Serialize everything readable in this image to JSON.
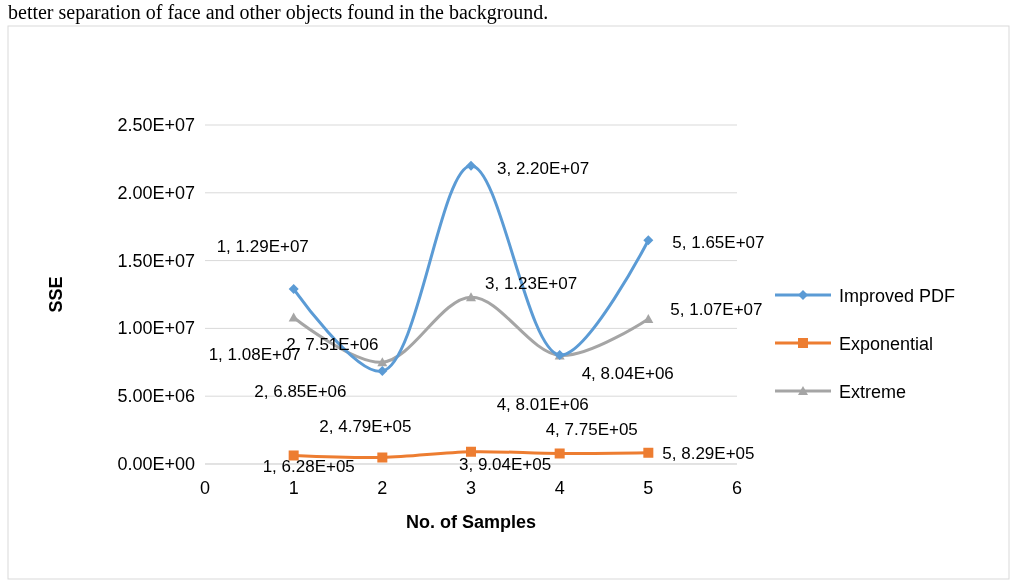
{
  "chart_data": {
    "type": "line",
    "xlabel": "No. of Samples",
    "ylabel": "SSE",
    "annotations": [
      "better separation of face and other objects found in the background.",
      {
        "text": "1, 1.29E+07",
        "x": 1,
        "y": 12900000
      },
      {
        "text": "2, 6.85E+06",
        "x": 2,
        "y": 6850000
      },
      {
        "text": "3, 2.20E+07",
        "x": 3,
        "y": 22000000
      },
      {
        "text": "4, 8.04E+06",
        "x": 4,
        "y": 8040000
      },
      {
        "text": "5, 1.65E+07",
        "x": 5,
        "y": 16500000
      },
      {
        "text": "1, 6.28E+05",
        "x": 1,
        "y": 628000
      },
      {
        "text": "2, 4.79E+05",
        "x": 2,
        "y": 479000
      },
      {
        "text": "3, 9.04E+05",
        "x": 3,
        "y": 904000
      },
      {
        "text": "4, 7.75E+05",
        "x": 4,
        "y": 775000
      },
      {
        "text": "5, 8.29E+05",
        "x": 5,
        "y": 829000
      },
      {
        "text": "1, 1.08E+07",
        "x": 1,
        "y": 10800000
      },
      {
        "text": "2, 7.51E+06",
        "x": 2,
        "y": 7510000
      },
      {
        "text": "3, 1.23E+07",
        "x": 3,
        "y": 12300000
      },
      {
        "text": "4, 8.01E+06",
        "x": 4,
        "y": 8010000
      },
      {
        "text": "5, 1.07E+07",
        "x": 5,
        "y": 10700000
      }
    ],
    "x": [
      1,
      2,
      3,
      4,
      5
    ],
    "xlim": [
      0,
      6
    ],
    "xticks": [
      0,
      1,
      2,
      3,
      4,
      5,
      6
    ],
    "ylim": [
      0,
      25000000
    ],
    "yticks": [
      {
        "value": 0,
        "label": "0.00E+00"
      },
      {
        "value": 5000000,
        "label": "5.00E+06"
      },
      {
        "value": 10000000,
        "label": "1.00E+07"
      },
      {
        "value": 15000000,
        "label": "1.50E+07"
      },
      {
        "value": 20000000,
        "label": "2.00E+07"
      },
      {
        "value": 25000000,
        "label": "2.50E+07"
      }
    ],
    "grid": "y",
    "legend": "right",
    "series": [
      {
        "name": "Improved PDF",
        "color": "#5b9bd5",
        "marker": "diamond",
        "values": [
          12900000,
          6850000,
          22000000,
          8040000,
          16500000
        ]
      },
      {
        "name": "Exponential",
        "color": "#ed7d31",
        "marker": "square",
        "values": [
          628000,
          479000,
          904000,
          775000,
          829000
        ]
      },
      {
        "name": "Extreme",
        "color": "#a5a5a5",
        "marker": "triangle",
        "values": [
          10800000,
          7510000,
          12300000,
          8010000,
          10700000
        ]
      }
    ]
  }
}
